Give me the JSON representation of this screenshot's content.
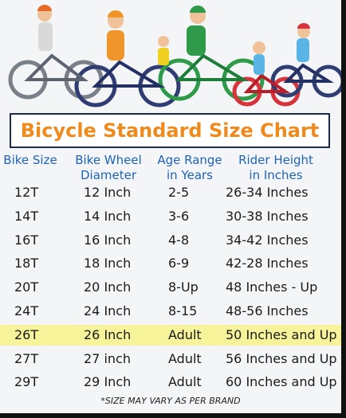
{
  "header": {
    "title": "Bicycle Standard Size Chart"
  },
  "table": {
    "columns": [
      [
        "Bike Size"
      ],
      [
        "Bike Wheel",
        "Diameter"
      ],
      [
        "Age Range",
        "in Years"
      ],
      [
        "Rider Height",
        "in Inches"
      ]
    ],
    "rows": [
      [
        "12T",
        "12 Inch",
        "2-5",
        "26-34 Inches"
      ],
      [
        "14T",
        "14 Inch",
        "3-6",
        "30-38 Inches"
      ],
      [
        "16T",
        "16 Inch",
        "4-8",
        "34-42 Inches"
      ],
      [
        "18T",
        "18 Inch",
        "6-9",
        "42-28 Inches"
      ],
      [
        "20T",
        "20 Inch",
        "8-Up",
        "48 Inches - Up"
      ],
      [
        "24T",
        "24 Inch",
        "8-15",
        "48-56 Inches"
      ],
      [
        "26T",
        "26 Inch",
        "Adult",
        "50 Inches and Up"
      ],
      [
        "27T",
        "27 inch",
        "Adult",
        "56 Inches and Up"
      ],
      [
        "29T",
        "29 Inch",
        "Adult",
        "60 Inches and Up"
      ]
    ]
  },
  "footnote": "*SIZE MAY VARY AS PER BRAND"
}
